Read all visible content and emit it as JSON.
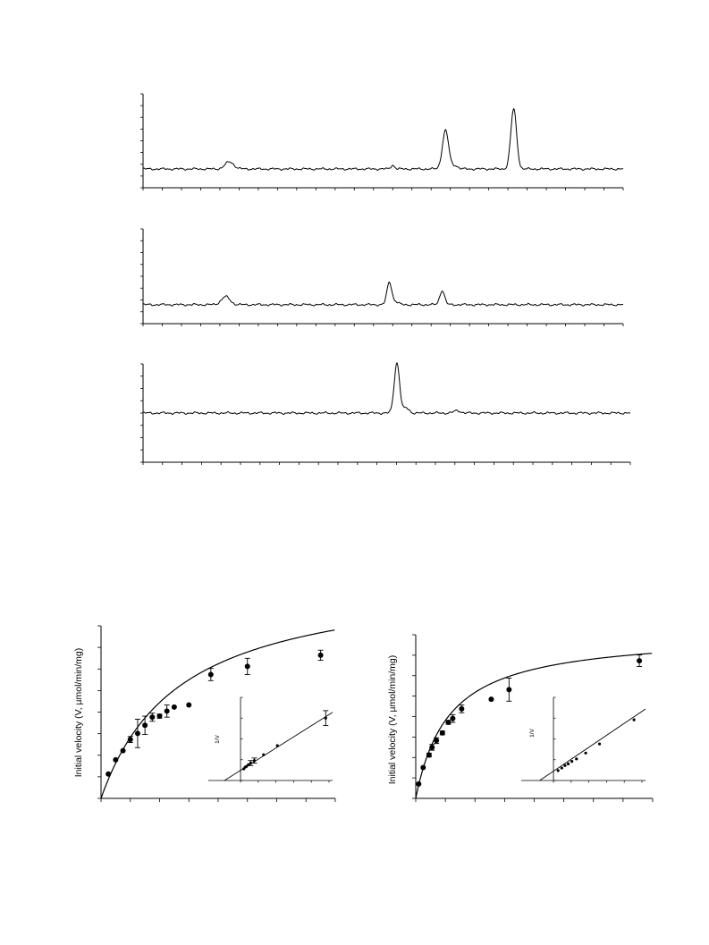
{
  "chart_data": [
    {
      "type": "line",
      "panel": "chromatogram-top",
      "xlim": [
        0,
        100
      ],
      "ylim": [
        -1,
        4
      ],
      "x_tick_count": 26,
      "y_tick_count": 9,
      "baseline": 0,
      "peaks": [
        {
          "x": 18,
          "height": 0.38,
          "width": 0.9
        },
        {
          "x": 52,
          "height": 0.2,
          "width": 0.4
        },
        {
          "x": 63,
          "height": 2.05,
          "width": 0.65
        },
        {
          "x": 65,
          "height": 0.18,
          "width": 0.6
        },
        {
          "x": 77.2,
          "height": 3.2,
          "width": 0.6
        }
      ]
    },
    {
      "type": "line",
      "panel": "chromatogram-middle",
      "xlim": [
        0,
        100
      ],
      "ylim": [
        -1,
        4
      ],
      "x_tick_count": 26,
      "y_tick_count": 9,
      "baseline": 0,
      "peaks": [
        {
          "x": 17.2,
          "height": 0.42,
          "width": 0.9
        },
        {
          "x": 51.3,
          "height": 1.18,
          "width": 0.5
        },
        {
          "x": 52.6,
          "height": 0.15,
          "width": 0.6
        },
        {
          "x": 62.3,
          "height": 0.75,
          "width": 0.5
        }
      ]
    },
    {
      "type": "line",
      "panel": "chromatogram-bottom",
      "xlim": [
        0,
        100
      ],
      "ylim": [
        -2.5,
        2.5
      ],
      "x_tick_count": 26,
      "y_tick_count": 9,
      "baseline": 0,
      "peaks": [
        {
          "x": 52.1,
          "height": 2.55,
          "width": 0.55
        },
        {
          "x": 54,
          "height": 0.25,
          "width": 0.6
        },
        {
          "x": 64.5,
          "height": 0.12,
          "width": 0.7
        }
      ]
    },
    {
      "type": "scatter",
      "panel": "kinetics-left",
      "ylabel": "Initial velocity (V, µmol/min/mg)",
      "xlim": [
        0,
        16
      ],
      "ylim": [
        0,
        8.5
      ],
      "x_tick_count": 9,
      "y_tick_count": 9,
      "fit": {
        "vmax": 11.1,
        "km": 5.4
      },
      "points": [
        {
          "x": 0.5,
          "y": 1.2,
          "err": 0
        },
        {
          "x": 1.0,
          "y": 1.9,
          "err": 0
        },
        {
          "x": 1.5,
          "y": 2.35,
          "err": 0
        },
        {
          "x": 2.0,
          "y": 2.9,
          "err": 0.15
        },
        {
          "x": 2.5,
          "y": 3.2,
          "err": 0.7
        },
        {
          "x": 3.0,
          "y": 3.6,
          "err": 0.45
        },
        {
          "x": 3.5,
          "y": 4.0,
          "err": 0.2
        },
        {
          "x": 4.0,
          "y": 4.05,
          "err": 0.1
        },
        {
          "x": 4.5,
          "y": 4.3,
          "err": 0.3
        },
        {
          "x": 5.0,
          "y": 4.5,
          "err": 0
        },
        {
          "x": 6.0,
          "y": 4.6,
          "err": 0
        },
        {
          "x": 7.5,
          "y": 6.1,
          "err": 0.3
        },
        {
          "x": 10.0,
          "y": 6.5,
          "err": 0.4
        },
        {
          "x": 15.0,
          "y": 7.05,
          "err": 0.25
        }
      ],
      "inset": {
        "ylabel": "1/V",
        "xlim": [
          -0.7,
          2.0
        ],
        "ylim": [
          0,
          1.0
        ],
        "x_tick_count": 6,
        "y_tick_count": 5,
        "line": {
          "x0": -0.35,
          "x1": 2.0,
          "y0": 0,
          "y1": 0.82
        },
        "points": [
          {
            "x": 0.07,
            "y": 0.14,
            "err": 0
          },
          {
            "x": 0.1,
            "y": 0.16,
            "err": 0
          },
          {
            "x": 0.13,
            "y": 0.17,
            "err": 0
          },
          {
            "x": 0.17,
            "y": 0.19,
            "err": 0
          },
          {
            "x": 0.22,
            "y": 0.21,
            "err": 0.03
          },
          {
            "x": 0.3,
            "y": 0.24,
            "err": 0.03
          },
          {
            "x": 0.5,
            "y": 0.31,
            "err": 0
          },
          {
            "x": 0.8,
            "y": 0.42,
            "err": 0
          },
          {
            "x": 1.85,
            "y": 0.75,
            "err": 0.09
          }
        ]
      }
    },
    {
      "type": "scatter",
      "panel": "kinetics-right",
      "ylabel": "Initial velocity (V, µmol/min/mg)",
      "xlim": [
        0,
        16
      ],
      "ylim": [
        0,
        8.5
      ],
      "x_tick_count": 9,
      "y_tick_count": 9,
      "fit": {
        "vmax": 8.6,
        "km": 2.25
      },
      "points": [
        {
          "x": 0.2,
          "y": 0.75,
          "err": 0
        },
        {
          "x": 0.5,
          "y": 1.6,
          "err": 0
        },
        {
          "x": 0.9,
          "y": 2.25,
          "err": 0.1
        },
        {
          "x": 1.1,
          "y": 2.65,
          "err": 0.15
        },
        {
          "x": 1.4,
          "y": 3.0,
          "err": 0.15
        },
        {
          "x": 1.8,
          "y": 3.4,
          "err": 0.1
        },
        {
          "x": 2.2,
          "y": 3.95,
          "err": 0.1
        },
        {
          "x": 2.5,
          "y": 4.15,
          "err": 0.2
        },
        {
          "x": 3.1,
          "y": 4.65,
          "err": 0.2
        },
        {
          "x": 5.1,
          "y": 5.15,
          "err": 0
        },
        {
          "x": 6.3,
          "y": 5.65,
          "err": 0.6
        },
        {
          "x": 15.1,
          "y": 7.15,
          "err": 0.3
        }
      ],
      "inset": {
        "ylabel": "1/V",
        "xlim": [
          -0.7,
          2.0
        ],
        "ylim": [
          0,
          1.0
        ],
        "x_tick_count": 6,
        "y_tick_count": 5,
        "line": {
          "x0": -0.3,
          "x1": 2.0,
          "y0": 0,
          "y1": 0.86
        },
        "points": [
          {
            "x": 0.1,
            "y": 0.12,
            "err": 0
          },
          {
            "x": 0.18,
            "y": 0.15,
            "err": 0
          },
          {
            "x": 0.25,
            "y": 0.18,
            "err": 0
          },
          {
            "x": 0.32,
            "y": 0.2,
            "err": 0
          },
          {
            "x": 0.4,
            "y": 0.23,
            "err": 0
          },
          {
            "x": 0.5,
            "y": 0.26,
            "err": 0
          },
          {
            "x": 0.7,
            "y": 0.33,
            "err": 0
          },
          {
            "x": 1.0,
            "y": 0.44,
            "err": 0
          },
          {
            "x": 1.75,
            "y": 0.73,
            "err": 0
          }
        ]
      }
    }
  ]
}
